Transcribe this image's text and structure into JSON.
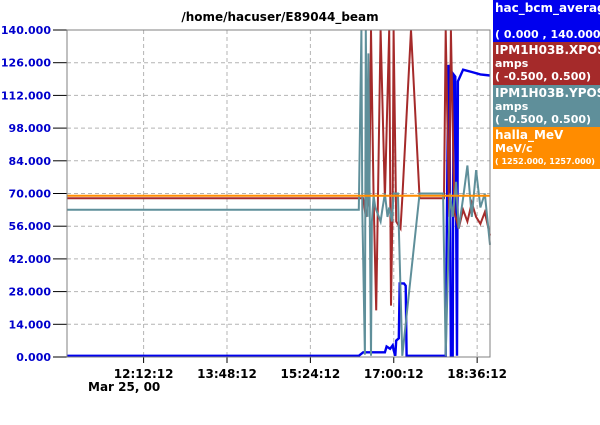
{
  "chart_data": {
    "type": "line",
    "title": "/home/hacuser/E89044_beam",
    "x_ticks": [
      "12:12:12",
      "13:48:12",
      "15:24:12",
      "17:00:12",
      "18:36:12"
    ],
    "x_date": "Mar 25, 00",
    "x_range": [
      "10:44",
      "18:51"
    ],
    "y_ticks": [
      "0.000",
      "14.000",
      "28.000",
      "42.000",
      "56.000",
      "70.000",
      "84.000",
      "98.000",
      "112.000",
      "126.000",
      "140.000"
    ],
    "ylim": [
      0,
      140
    ],
    "grid": true,
    "legend_placement": "right",
    "series": [
      {
        "name": "hac_bcm_average",
        "unit": "",
        "range": "( 0.000  ,  140.000)",
        "color": "#0000ee",
        "x": [
          "10:44",
          "16:20",
          "16:25",
          "16:50",
          "16:52",
          "16:56",
          "16:59",
          "17:00",
          "17:02",
          "17:03",
          "17:06",
          "17:07",
          "17:12",
          "17:14",
          "17:15",
          "17:22",
          "17:24",
          "18:00",
          "18:03",
          "18:04",
          "18:06",
          "18:08",
          "18:09",
          "18:11",
          "18:13",
          "18:14",
          "18:20",
          "18:30",
          "18:40",
          "18:51"
        ],
        "y": [
          0.5,
          0.5,
          2.0,
          2.0,
          4.5,
          3.5,
          5.0,
          3.0,
          0.5,
          7.0,
          8.0,
          31.5,
          31.5,
          30.5,
          0.5,
          0.5,
          0.5,
          0.5,
          125.0,
          124.0,
          0.5,
          0.5,
          121.0,
          120.0,
          0.5,
          118.0,
          123.0,
          122.0,
          121.0,
          120.5
        ]
      },
      {
        "name": "IPM1H03B.XPOS",
        "unit": "amps",
        "range": "( -0.500,  0.500)",
        "color": "#a52a2a",
        "x": [
          "10:44",
          "16:25",
          "16:28",
          "16:32",
          "16:34",
          "16:37",
          "16:40",
          "16:45",
          "16:50",
          "16:55",
          "16:57",
          "16:59",
          "17:00",
          "17:03",
          "17:08",
          "17:10",
          "17:20",
          "17:30",
          "17:58",
          "18:00",
          "18:04",
          "18:06",
          "18:10",
          "18:15",
          "18:20",
          "18:25",
          "18:30",
          "18:35",
          "18:40",
          "18:45",
          "18:51"
        ],
        "y": [
          68.0,
          68.0,
          60.0,
          68.0,
          140.0,
          68.0,
          20.0,
          140.0,
          68.0,
          140.0,
          22.0,
          68.0,
          140.0,
          58.0,
          55.0,
          68.0,
          140.0,
          68.0,
          68.0,
          140.0,
          60.0,
          140.0,
          62.0,
          55.0,
          63.0,
          58.0,
          66.0,
          60.0,
          57.0,
          62.0,
          52.0
        ]
      },
      {
        "name": "IPM1H03B.YPOS",
        "unit": "amps",
        "range": "( -0.500,  0.500)",
        "color": "#5f8f9a",
        "x": [
          "10:44",
          "16:20",
          "16:23",
          "16:24",
          "16:27",
          "16:28",
          "16:30",
          "16:31",
          "16:34",
          "16:35",
          "16:37",
          "16:39",
          "16:45",
          "16:47",
          "16:50",
          "16:53",
          "16:55",
          "16:58",
          "17:00",
          "17:05",
          "17:10",
          "17:30",
          "17:57",
          "18:00",
          "18:05",
          "18:08",
          "18:12",
          "18:15",
          "18:20",
          "18:25",
          "18:30",
          "18:35",
          "18:40",
          "18:45",
          "18:51"
        ],
        "y": [
          63.0,
          63.0,
          140.0,
          63.0,
          1.0,
          140.0,
          60.0,
          130.0,
          0.5,
          58.0,
          69.0,
          64.0,
          58.0,
          63.0,
          70.0,
          60.0,
          64.0,
          58.0,
          70.0,
          70.0,
          0.5,
          70.0,
          70.0,
          0.5,
          70.0,
          60.0,
          75.0,
          55.0,
          68.0,
          82.0,
          60.0,
          80.0,
          64.0,
          70.0,
          48.0
        ]
      },
      {
        "name": "halla_MeV",
        "unit": "MeV/c",
        "range": "( 1252.000,  1257.000)",
        "color": "#ff8c00",
        "x": [
          "10:44",
          "18:51"
        ],
        "y": [
          69.0,
          69.0
        ]
      }
    ]
  }
}
